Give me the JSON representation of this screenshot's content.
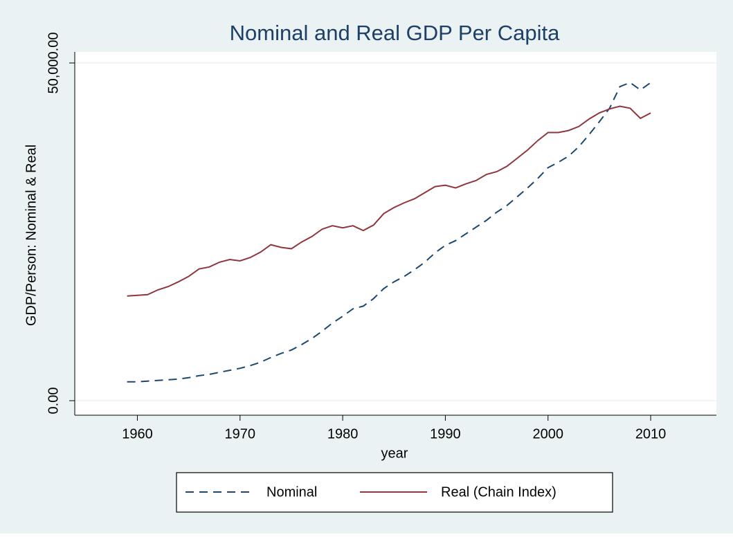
{
  "chart_data": {
    "type": "line",
    "title": "Nominal and Real GDP Per Capita",
    "x_label": "year",
    "y_label": "GDP/Person: Nominal & Real",
    "x": [
      1959,
      1960,
      1961,
      1962,
      1963,
      1964,
      1965,
      1966,
      1967,
      1968,
      1969,
      1970,
      1971,
      1972,
      1973,
      1974,
      1975,
      1976,
      1977,
      1978,
      1979,
      1980,
      1981,
      1982,
      1983,
      1984,
      1985,
      1986,
      1987,
      1988,
      1989,
      1990,
      1991,
      1992,
      1993,
      1994,
      1995,
      1996,
      1997,
      1998,
      1999,
      2000,
      2001,
      2002,
      2003,
      2004,
      2005,
      2006,
      2007,
      2008,
      2009,
      2010
    ],
    "series": [
      {
        "name": "Nominal",
        "color": "#1a476f",
        "dash": true,
        "values": [
          2800,
          2800,
          2900,
          3000,
          3100,
          3200,
          3400,
          3700,
          3900,
          4200,
          4500,
          4800,
          5200,
          5700,
          6400,
          7000,
          7500,
          8300,
          9200,
          10300,
          11500,
          12500,
          13600,
          14000,
          15100,
          16600,
          17600,
          18400,
          19400,
          20500,
          21900,
          23000,
          23700,
          24700,
          25700,
          26700,
          27900,
          28900,
          30200,
          31500,
          32900,
          34500,
          35300,
          36200,
          37600,
          39400,
          41300,
          43300,
          46500,
          47100,
          46000,
          47100
        ]
      },
      {
        "name": "Real (Chain Index)",
        "color": "#90353b",
        "dash": false,
        "values": [
          15500,
          15600,
          15700,
          16400,
          16900,
          17600,
          18400,
          19500,
          19800,
          20500,
          20900,
          20700,
          21200,
          22000,
          23100,
          22700,
          22500,
          23500,
          24300,
          25400,
          25900,
          25600,
          25900,
          25200,
          26000,
          27700,
          28600,
          29300,
          29900,
          30800,
          31700,
          31900,
          31500,
          32100,
          32600,
          33500,
          33900,
          34700,
          35900,
          37100,
          38500,
          39700,
          39700,
          40000,
          40600,
          41700,
          42600,
          43200,
          43600,
          43300,
          41800,
          42600
        ]
      }
    ],
    "xlim": [
      1953.9,
      2016.4
    ],
    "xticks": [
      1960,
      1970,
      1980,
      1990,
      2000,
      2010
    ],
    "ylim": [
      -2150,
      51640
    ],
    "yticks": [
      {
        "value": 0,
        "label": "0.00"
      },
      {
        "value": 50000,
        "label": "50,000.00"
      }
    ],
    "grid": true,
    "legend": "bottom"
  }
}
